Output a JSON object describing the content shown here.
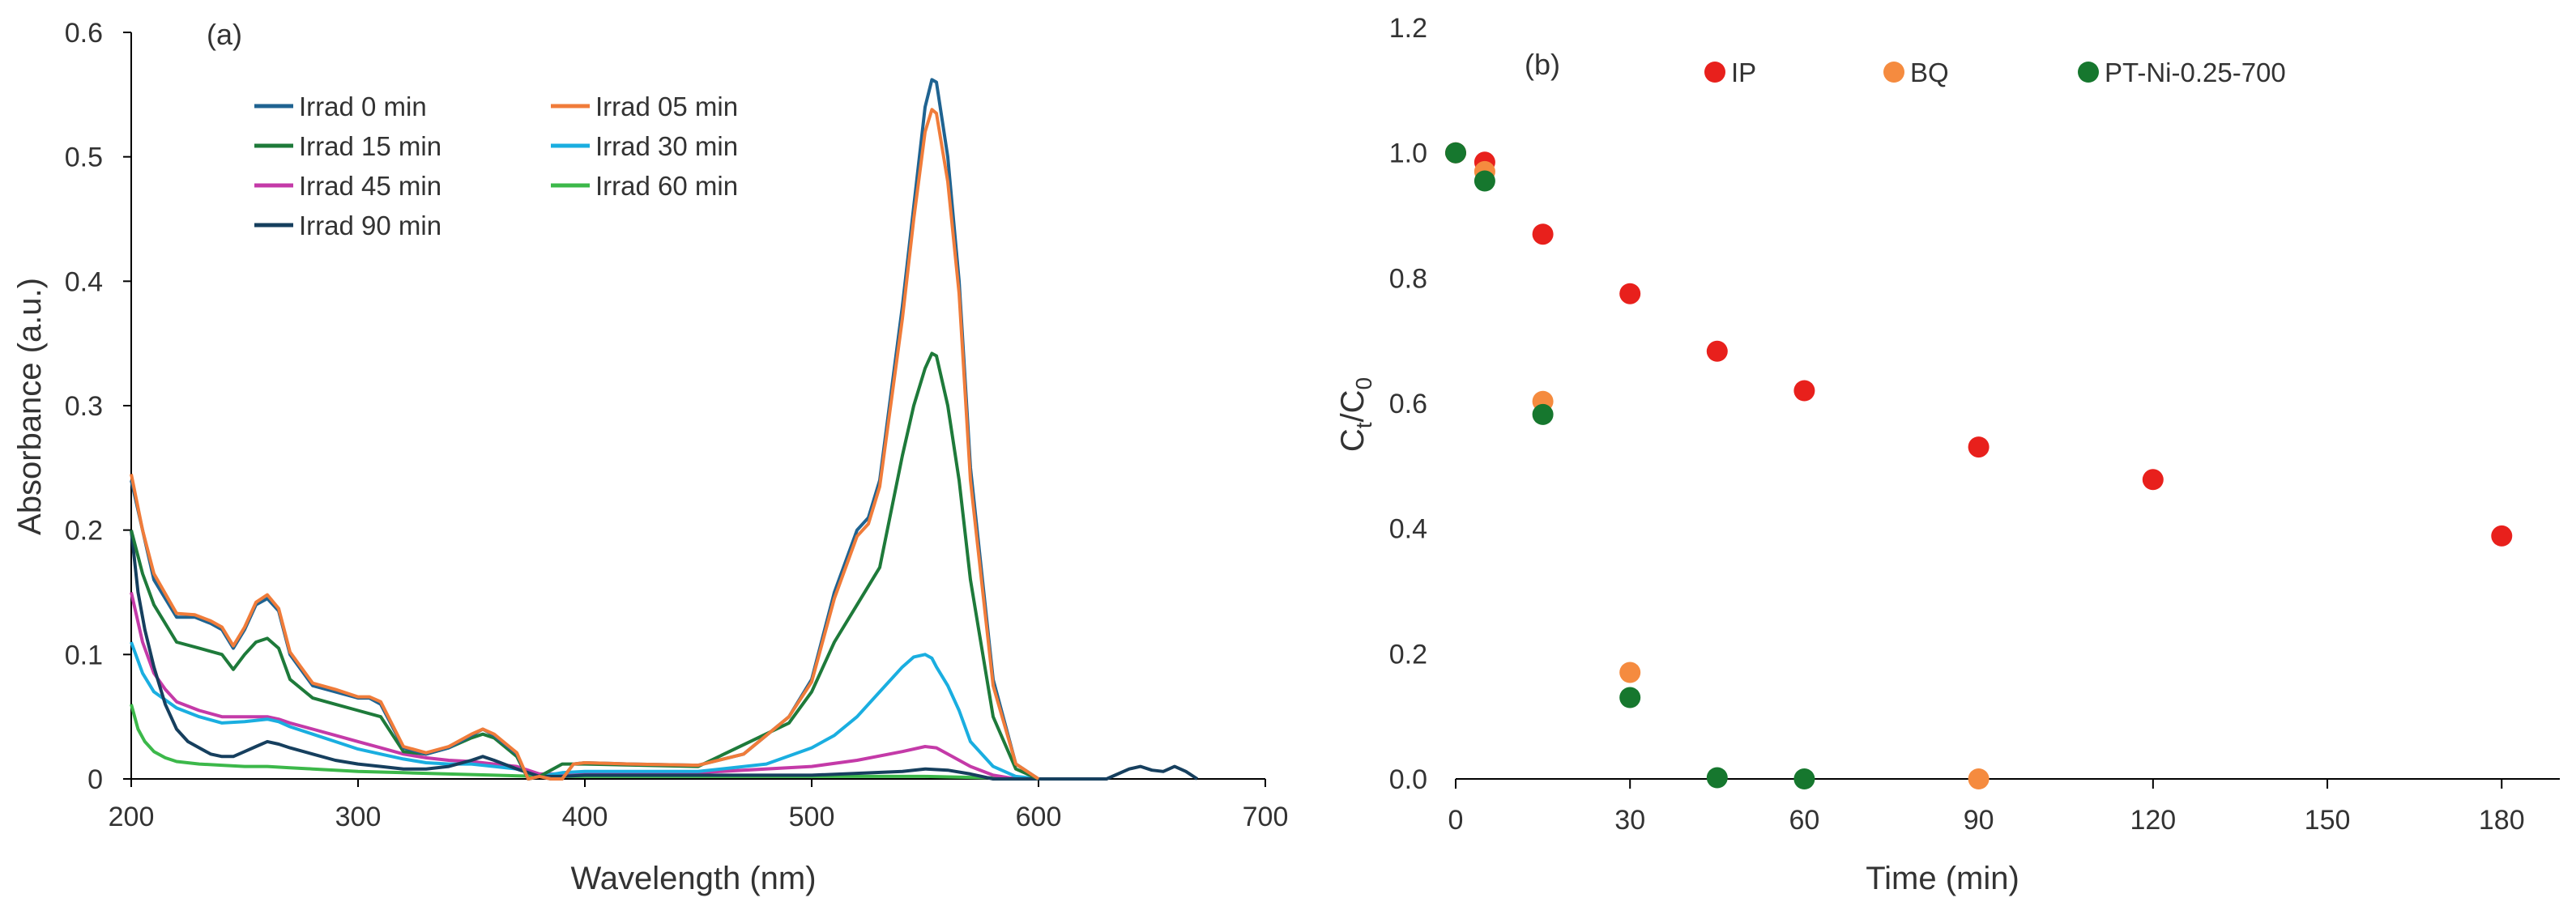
{
  "chart_data": [
    {
      "type": "line",
      "panel_label": "(a)",
      "xlabel": "Wavelength (nm)",
      "ylabel": "Absorbance (a.u.)",
      "xlim": [
        200,
        700
      ],
      "ylim": [
        0,
        0.6
      ],
      "xticks": [
        "200",
        "300",
        "400",
        "500",
        "600",
        "700"
      ],
      "yticks": [
        "0",
        "0.1",
        "0.2",
        "0.3",
        "0.4",
        "0.5",
        "0.6"
      ],
      "legend_position": "top-center",
      "series": [
        {
          "name": "Irrad 0 min",
          "color": "#1f6391",
          "x": [
            200,
            205,
            210,
            220,
            228,
            235,
            240,
            245,
            250,
            255,
            260,
            265,
            270,
            280,
            290,
            300,
            305,
            310,
            320,
            330,
            340,
            350,
            355,
            360,
            370,
            375,
            380,
            385,
            390,
            395,
            400,
            420,
            450,
            470,
            490,
            500,
            510,
            520,
            525,
            530,
            540,
            545,
            550,
            553,
            555,
            560,
            565,
            570,
            580,
            590,
            600
          ],
          "y": [
            0.24,
            0.2,
            0.16,
            0.13,
            0.13,
            0.125,
            0.12,
            0.105,
            0.12,
            0.14,
            0.145,
            0.135,
            0.1,
            0.075,
            0.07,
            0.065,
            0.065,
            0.06,
            0.025,
            0.02,
            0.025,
            0.035,
            0.04,
            0.035,
            0.02,
            0.0,
            0.002,
            0.0,
            0.0,
            0.012,
            0.013,
            0.012,
            0.011,
            0.02,
            0.05,
            0.08,
            0.15,
            0.2,
            0.21,
            0.24,
            0.38,
            0.46,
            0.54,
            0.562,
            0.56,
            0.5,
            0.4,
            0.25,
            0.08,
            0.012,
            0.0
          ]
        },
        {
          "name": "Irrad 05 min",
          "color": "#f07c3a",
          "x": [
            200,
            205,
            210,
            220,
            228,
            235,
            240,
            245,
            250,
            255,
            260,
            265,
            270,
            280,
            290,
            300,
            305,
            310,
            320,
            330,
            340,
            350,
            355,
            360,
            370,
            375,
            380,
            385,
            390,
            395,
            400,
            420,
            450,
            470,
            490,
            500,
            510,
            520,
            525,
            530,
            540,
            545,
            550,
            553,
            555,
            560,
            565,
            570,
            580,
            590,
            600
          ],
          "y": [
            0.245,
            0.2,
            0.165,
            0.133,
            0.132,
            0.127,
            0.122,
            0.107,
            0.122,
            0.142,
            0.148,
            0.137,
            0.102,
            0.077,
            0.072,
            0.066,
            0.066,
            0.062,
            0.026,
            0.021,
            0.026,
            0.036,
            0.04,
            0.036,
            0.021,
            0.0,
            0.002,
            0.0,
            0.0,
            0.012,
            0.013,
            0.012,
            0.011,
            0.02,
            0.05,
            0.078,
            0.145,
            0.195,
            0.205,
            0.235,
            0.37,
            0.45,
            0.52,
            0.538,
            0.535,
            0.48,
            0.39,
            0.24,
            0.075,
            0.012,
            0.0
          ]
        },
        {
          "name": "Irrad 15 min",
          "color": "#1e7a3a",
          "x": [
            200,
            205,
            210,
            220,
            230,
            240,
            245,
            250,
            255,
            260,
            265,
            270,
            280,
            290,
            300,
            310,
            320,
            330,
            340,
            350,
            355,
            360,
            370,
            375,
            380,
            390,
            400,
            450,
            490,
            500,
            510,
            520,
            530,
            540,
            545,
            550,
            553,
            555,
            560,
            565,
            570,
            580,
            590,
            600
          ],
          "y": [
            0.2,
            0.165,
            0.14,
            0.11,
            0.105,
            0.1,
            0.088,
            0.1,
            0.11,
            0.113,
            0.105,
            0.08,
            0.065,
            0.06,
            0.055,
            0.05,
            0.022,
            0.02,
            0.025,
            0.033,
            0.036,
            0.033,
            0.018,
            0.0,
            0.002,
            0.012,
            0.012,
            0.01,
            0.045,
            0.07,
            0.11,
            0.14,
            0.17,
            0.26,
            0.3,
            0.33,
            0.342,
            0.34,
            0.3,
            0.24,
            0.16,
            0.05,
            0.008,
            0.0
          ]
        },
        {
          "name": "Irrad 30 min",
          "color": "#1aaee0",
          "x": [
            200,
            205,
            210,
            220,
            230,
            240,
            250,
            260,
            265,
            270,
            280,
            290,
            300,
            310,
            320,
            330,
            340,
            350,
            360,
            370,
            380,
            390,
            400,
            450,
            480,
            500,
            510,
            520,
            530,
            540,
            545,
            550,
            553,
            555,
            560,
            565,
            570,
            580,
            590,
            600
          ],
          "y": [
            0.11,
            0.085,
            0.07,
            0.057,
            0.05,
            0.045,
            0.046,
            0.048,
            0.046,
            0.042,
            0.036,
            0.03,
            0.024,
            0.02,
            0.016,
            0.013,
            0.012,
            0.012,
            0.01,
            0.008,
            0.002,
            0.005,
            0.006,
            0.006,
            0.012,
            0.025,
            0.035,
            0.05,
            0.07,
            0.09,
            0.098,
            0.1,
            0.097,
            0.09,
            0.075,
            0.055,
            0.03,
            0.01,
            0.002,
            0.0
          ]
        },
        {
          "name": "Irrad 45 min",
          "color": "#c43aa8",
          "x": [
            200,
            205,
            210,
            215,
            220,
            230,
            240,
            250,
            260,
            265,
            270,
            280,
            290,
            300,
            310,
            320,
            330,
            340,
            350,
            360,
            370,
            380,
            390,
            400,
            450,
            500,
            520,
            540,
            550,
            555,
            560,
            570,
            580,
            590
          ],
          "y": [
            0.15,
            0.11,
            0.085,
            0.072,
            0.062,
            0.055,
            0.05,
            0.05,
            0.05,
            0.048,
            0.045,
            0.04,
            0.035,
            0.03,
            0.025,
            0.02,
            0.017,
            0.015,
            0.014,
            0.012,
            0.01,
            0.004,
            0.004,
            0.004,
            0.005,
            0.01,
            0.015,
            0.022,
            0.026,
            0.025,
            0.02,
            0.01,
            0.003,
            0.0
          ]
        },
        {
          "name": "Irrad 60 min",
          "color": "#3cb84a",
          "x": [
            200,
            203,
            206,
            210,
            215,
            220,
            230,
            240,
            250,
            260,
            270,
            280,
            290,
            300,
            320,
            340,
            360,
            380,
            400,
            450,
            500,
            550,
            600
          ],
          "y": [
            0.06,
            0.04,
            0.03,
            0.022,
            0.017,
            0.014,
            0.012,
            0.011,
            0.01,
            0.01,
            0.009,
            0.008,
            0.007,
            0.006,
            0.005,
            0.004,
            0.003,
            0.002,
            0.002,
            0.002,
            0.002,
            0.002,
            0.0
          ]
        },
        {
          "name": "Irrad 90 min",
          "color": "#163f5e",
          "x": [
            200,
            203,
            206,
            210,
            215,
            220,
            225,
            230,
            235,
            240,
            245,
            250,
            255,
            260,
            265,
            270,
            280,
            290,
            300,
            310,
            320,
            330,
            340,
            350,
            355,
            360,
            370,
            380,
            390,
            400,
            450,
            500,
            540,
            550,
            560,
            570,
            580,
            600,
            630,
            640,
            645,
            650,
            655,
            660,
            665,
            670
          ],
          "y": [
            0.2,
            0.15,
            0.12,
            0.09,
            0.06,
            0.04,
            0.03,
            0.025,
            0.02,
            0.018,
            0.018,
            0.022,
            0.026,
            0.03,
            0.028,
            0.025,
            0.02,
            0.015,
            0.012,
            0.01,
            0.008,
            0.008,
            0.01,
            0.015,
            0.018,
            0.015,
            0.008,
            0.002,
            0.002,
            0.003,
            0.003,
            0.003,
            0.006,
            0.008,
            0.007,
            0.004,
            0.0,
            0.0,
            0.0,
            0.008,
            0.01,
            0.007,
            0.006,
            0.01,
            0.006,
            0.0
          ]
        }
      ]
    },
    {
      "type": "scatter",
      "panel_label": "(b)",
      "xlabel": "Time (min)",
      "ylabel_main": "C",
      "ylabel_sub1": "t",
      "ylabel_mid": "/C",
      "ylabel_sub2": "0",
      "xlim": [
        0,
        190
      ],
      "ylim": [
        0,
        1.2
      ],
      "xticks": [
        "0",
        "30",
        "60",
        "90",
        "120",
        "150",
        "180"
      ],
      "yticks": [
        "0.0",
        "0.2",
        "0.4",
        "0.6",
        "0.8",
        "1.0",
        "1.2"
      ],
      "legend_position": "top",
      "series": [
        {
          "name": "IP",
          "color": "#e8201c",
          "x": [
            0,
            5,
            15,
            30,
            45,
            60,
            90,
            120,
            180
          ],
          "y": [
            1.0,
            0.985,
            0.87,
            0.775,
            0.683,
            0.62,
            0.53,
            0.478,
            0.388
          ]
        },
        {
          "name": "BQ",
          "color": "#f58b3f",
          "x": [
            5,
            15,
            30,
            90
          ],
          "y": [
            0.97,
            0.603,
            0.17,
            0.0
          ]
        },
        {
          "name": "PT-Ni-0.25-700",
          "color": "#16772e",
          "x": [
            0,
            5,
            15,
            30,
            45,
            60
          ],
          "y": [
            1.0,
            0.955,
            0.582,
            0.13,
            0.002,
            0.0
          ]
        }
      ]
    }
  ]
}
